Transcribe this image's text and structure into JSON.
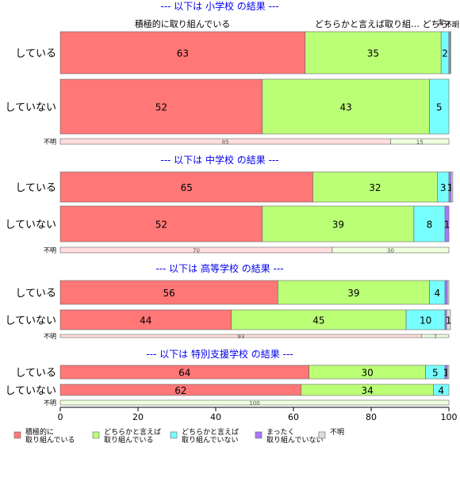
{
  "chart_data": {
    "type": "bar",
    "orientation": "horizontal",
    "stacked": true,
    "xlim": [
      0,
      100
    ],
    "x_ticks": [
      0,
      20,
      40,
      60,
      80,
      100
    ],
    "colors": [
      "#ff7777",
      "#bbff77",
      "#77ffff",
      "#aa77ff",
      "#dddddd"
    ],
    "legend": {
      "placement": "bottom",
      "entries": [
        [
          "積極的に",
          "取り組んでいる"
        ],
        [
          "どちらかと言えば",
          "取り組んでいる"
        ],
        [
          "どちらかと言えば",
          "取り組んでいない"
        ],
        [
          "まったく",
          "取り組んでいない"
        ],
        [
          "不明"
        ]
      ]
    },
    "top_labels": [
      "積極的に取り組んでいる",
      "どちらかと言えば取り組… どちら…",
      "まっ",
      "不明"
    ],
    "groups": [
      {
        "title": "--- 以下は 小学校 の結果 ---",
        "rows": [
          {
            "label": "している",
            "values": [
              63,
              35,
              2,
              0.3,
              0.2
            ],
            "labels": [
              "63",
              "35",
              "2",
              "",
              ""
            ]
          },
          {
            "label": "していない",
            "values": [
              52,
              43,
              5,
              0,
              0
            ],
            "labels": [
              "52",
              "43",
              "5",
              "",
              ""
            ]
          },
          {
            "label": "不明",
            "values": [
              85,
              15
            ],
            "labels": [
              "85",
              "15"
            ]
          }
        ]
      },
      {
        "title": "--- 以下は 中学校 の結果 ---",
        "rows": [
          {
            "label": "している",
            "values": [
              65,
              32,
              3,
              0.6,
              0.4
            ],
            "labels": [
              "65",
              "32",
              "3",
              "1",
              ""
            ]
          },
          {
            "label": "していない",
            "values": [
              52,
              39,
              8,
              1,
              0
            ],
            "labels": [
              "52",
              "39",
              "8",
              "1",
              ""
            ]
          },
          {
            "label": "不明",
            "values": [
              70,
              30
            ],
            "labels": [
              "70",
              "30"
            ]
          }
        ]
      },
      {
        "title": "--- 以下は 高等学校 の結果 ---",
        "rows": [
          {
            "label": "している",
            "values": [
              56,
              39,
              4,
              0.6,
              0.4
            ],
            "labels": [
              "56",
              "39",
              "4",
              "",
              ""
            ]
          },
          {
            "label": "していない",
            "values": [
              44,
              45,
              10,
              0.4,
              1
            ],
            "labels": [
              "44",
              "45",
              "10",
              "",
              "1"
            ]
          },
          {
            "label": "不明",
            "values": [
              93,
              7
            ],
            "labels": [
              "93",
              "7"
            ]
          }
        ]
      },
      {
        "title": "--- 以下は 特別支援学校 の結果 ---",
        "rows": [
          {
            "label": "している",
            "values": [
              64,
              30,
              5,
              0.6,
              0.4
            ],
            "labels": [
              "64",
              "30",
              "5",
              "1",
              ""
            ]
          },
          {
            "label": "していない",
            "values": [
              62,
              34,
              4,
              0,
              0
            ],
            "labels": [
              "62",
              "34",
              "4",
              "",
              ""
            ]
          },
          {
            "label": "不明",
            "values": [
              100
            ],
            "labels": [
              "100"
            ]
          }
        ]
      }
    ]
  }
}
